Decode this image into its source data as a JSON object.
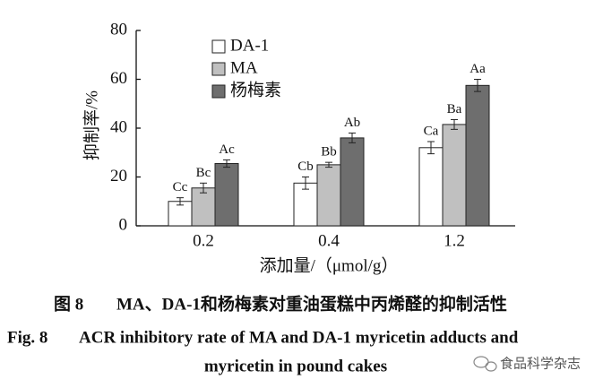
{
  "chart_data": {
    "type": "bar",
    "y_label": "抑制率/%",
    "x_label": "添加量/（μmol/g）",
    "categories": [
      "0.2",
      "0.4",
      "1.2"
    ],
    "series": [
      {
        "name": "DA-1",
        "color": "#ffffff",
        "values": [
          10,
          17.5,
          32
        ],
        "errors": [
          1.5,
          2.5,
          2.5
        ],
        "letters": [
          "Cc",
          "Cb",
          "Ca"
        ]
      },
      {
        "name": "MA",
        "color": "#c0c0c0",
        "values": [
          15.5,
          25,
          41.5
        ],
        "errors": [
          2,
          1,
          2
        ],
        "letters": [
          "Bc",
          "Bb",
          "Ba"
        ]
      },
      {
        "name": "杨梅素",
        "color": "#6e6e6e",
        "values": [
          25.5,
          36,
          57.5
        ],
        "errors": [
          1.5,
          2,
          2.5
        ],
        "letters": [
          "Ac",
          "Ab",
          "Aa"
        ]
      }
    ],
    "ylim": [
      0,
      80
    ],
    "yticks": [
      0,
      20,
      40,
      60,
      80
    ],
    "grid": false
  },
  "caption": {
    "label": "图 8",
    "text": "MA、DA-1和杨梅素对重油蛋糕中丙烯醛的抑制活性",
    "en_label": "Fig. 8",
    "en_line1": "ACR inhibitory rate of MA and DA-1 myricetin adducts and",
    "en_line2": "myricetin in pound cakes"
  },
  "watermark": "食品科学杂志"
}
